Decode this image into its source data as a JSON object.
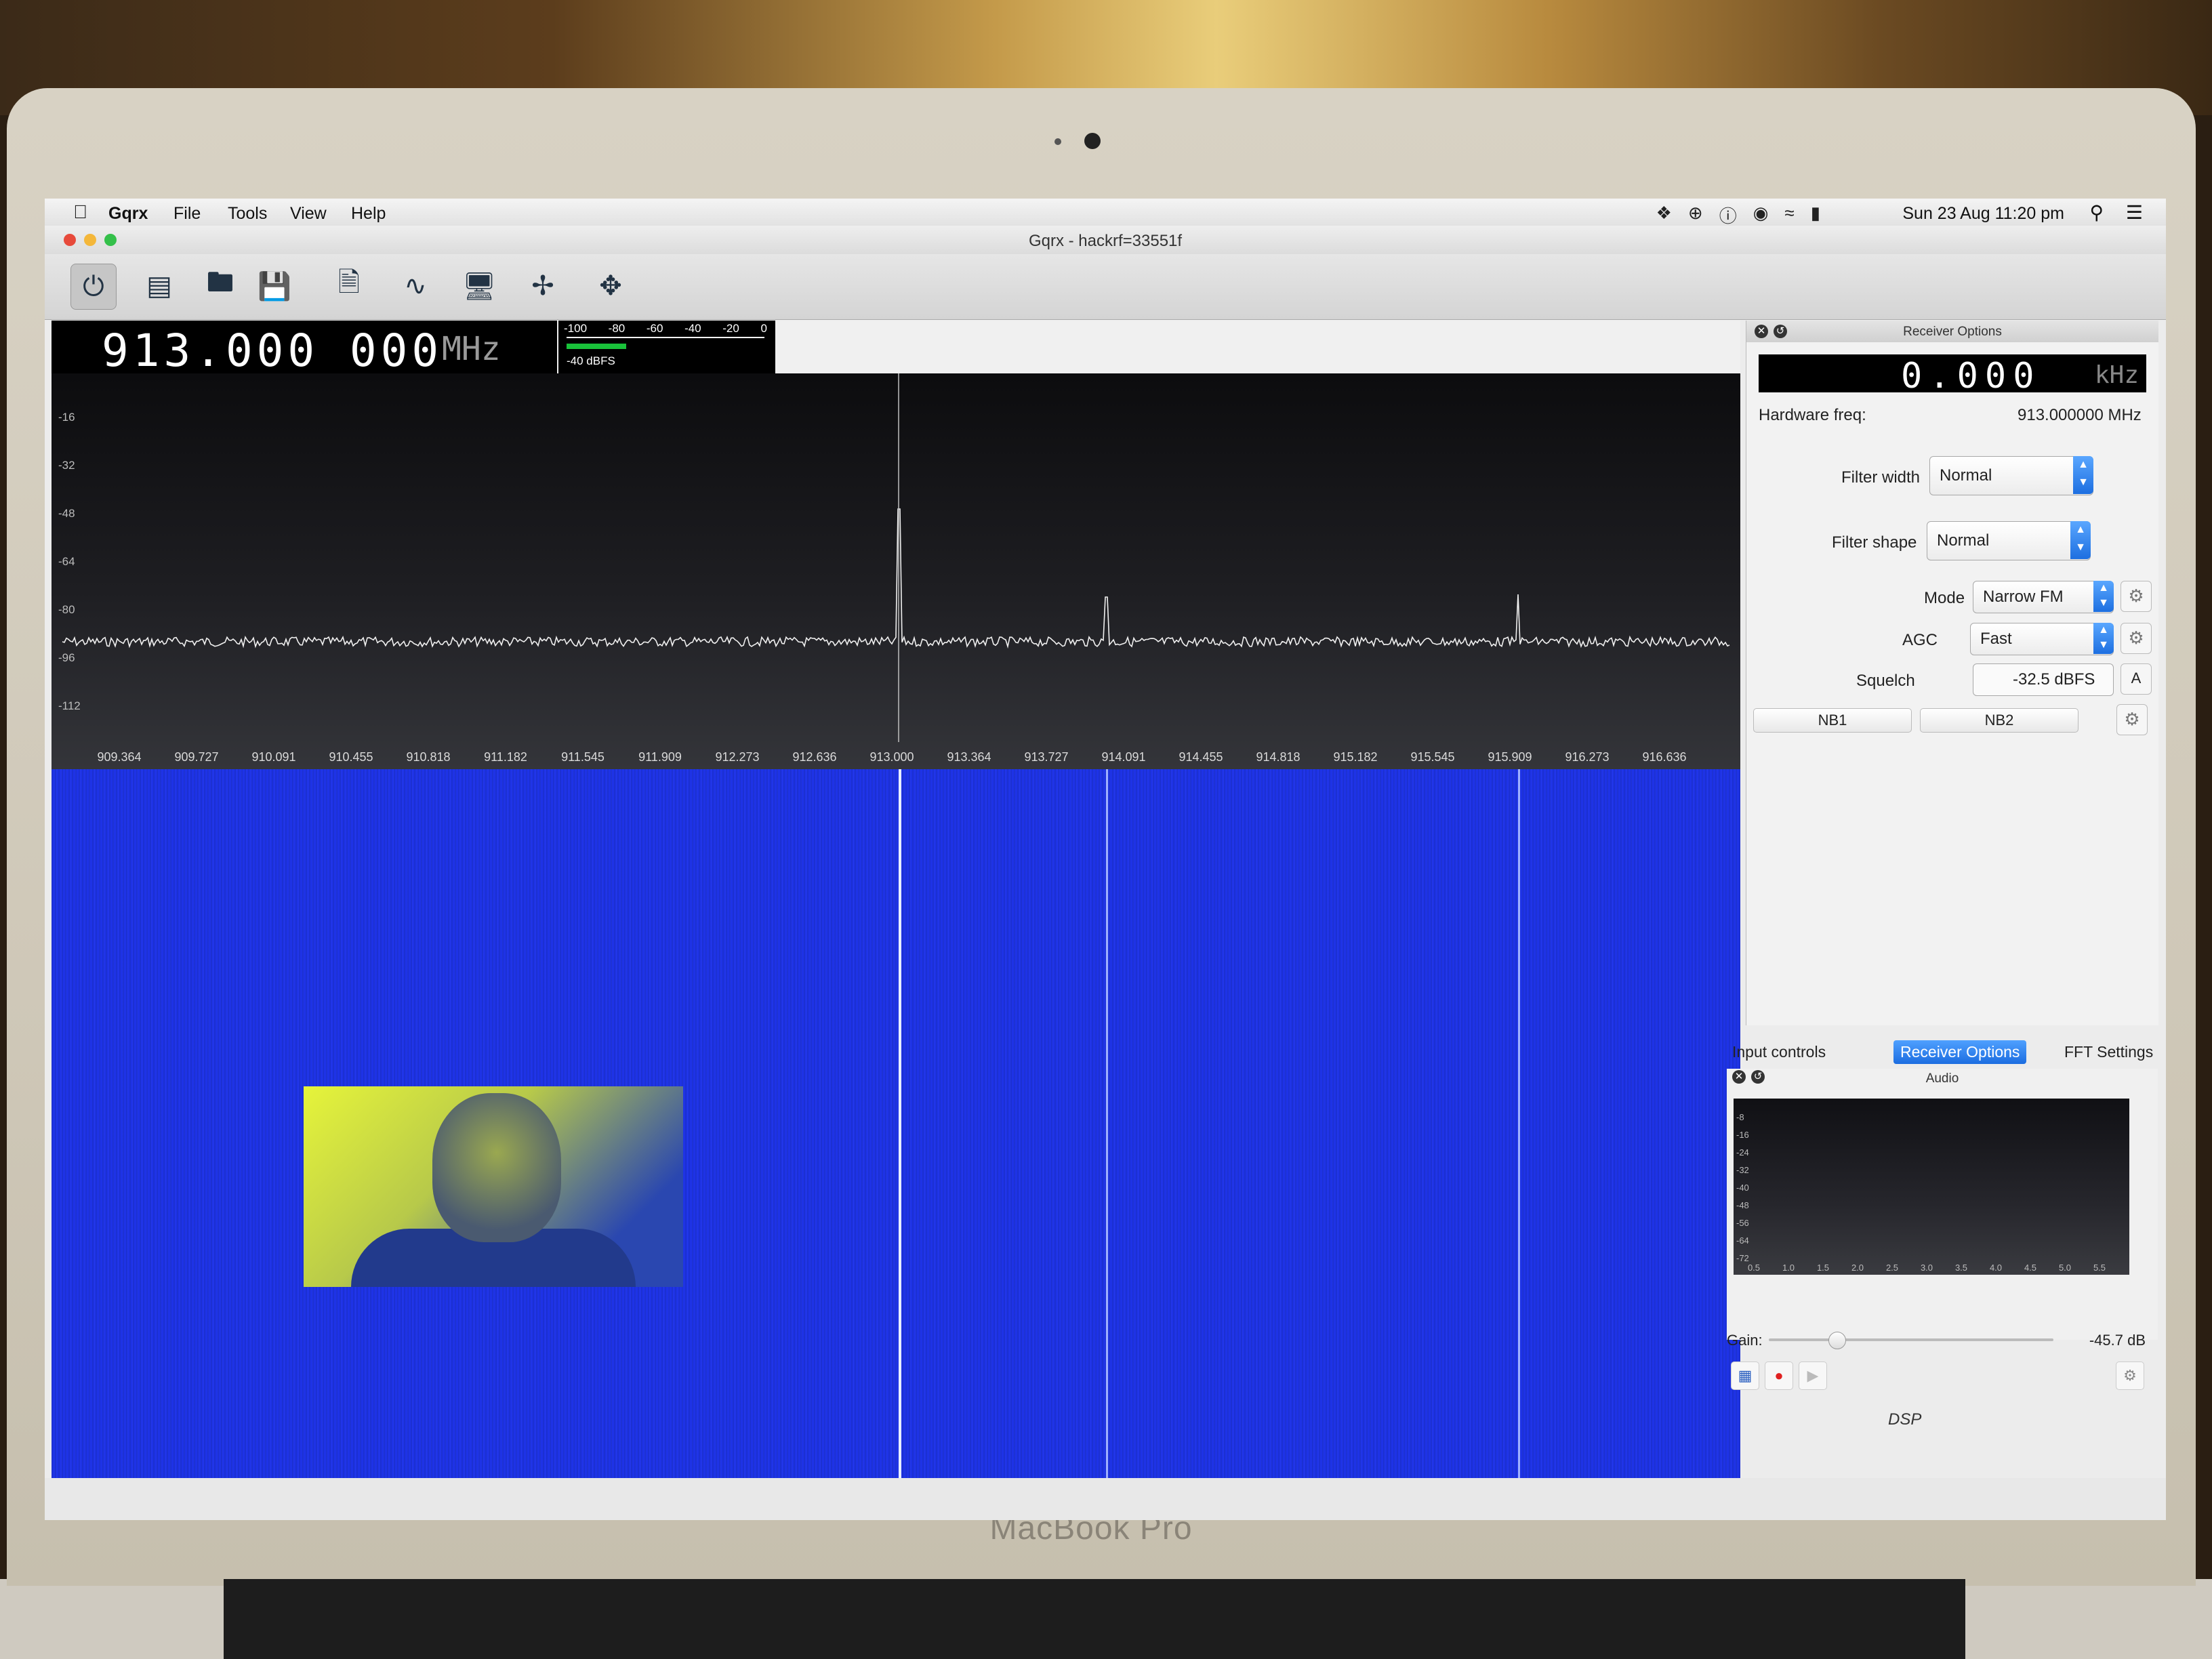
{
  "device": {
    "brand": "MacBook Pro"
  },
  "menubar": {
    "app_name": "Gqrx",
    "items": [
      "File",
      "Tools",
      "View",
      "Help"
    ],
    "clock": "Sun 23 Aug  11:20 pm"
  },
  "window": {
    "title": "Gqrx  - hackrf=33551f"
  },
  "frequency": {
    "value": "913.000 000",
    "unit": "MHz"
  },
  "smeter": {
    "scale": [
      "-100",
      "-80",
      "-60",
      "-40",
      "-20",
      "0"
    ],
    "level_label": "-40 dBFS",
    "level_fraction": 0.3
  },
  "spectrum": {
    "y_ticks": [
      "-16",
      "-32",
      "-48",
      "-64",
      "-80",
      "-96",
      "-112"
    ],
    "x_ticks": [
      "909.364",
      "909.727",
      "910.091",
      "910.455",
      "910.818",
      "911.182",
      "911.545",
      "911.909",
      "912.273",
      "912.636",
      "913.000",
      "913.364",
      "913.727",
      "914.091",
      "914.455",
      "914.818",
      "915.182",
      "915.545",
      "915.909",
      "916.273",
      "916.636"
    ]
  },
  "receiver_options": {
    "title": "Receiver Options",
    "offset_value": "0.000",
    "offset_unit": "kHz",
    "hardware_freq_label": "Hardware freq:",
    "hardware_freq_value": "913.000000 MHz",
    "filter_width_label": "Filter width",
    "filter_width_value": "Normal",
    "filter_shape_label": "Filter shape",
    "filter_shape_value": "Normal",
    "mode_label": "Mode",
    "mode_value": "Narrow FM",
    "agc_label": "AGC",
    "agc_value": "Fast",
    "squelch_label": "Squelch",
    "squelch_value": "-32.5 dBFS",
    "squelch_auto": "A",
    "nb1": "NB1",
    "nb2": "NB2"
  },
  "tabs": [
    "Input controls",
    "Receiver Options",
    "FFT Settings"
  ],
  "audio": {
    "title": "Audio",
    "y_ticks": [
      "-8",
      "-16",
      "-24",
      "-32",
      "-40",
      "-48",
      "-56",
      "-64",
      "-72"
    ],
    "x_ticks": [
      "0.5",
      "1.0",
      "1.5",
      "2.0",
      "2.5",
      "3.0",
      "3.5",
      "4.0",
      "4.5",
      "5.0",
      "5.5"
    ],
    "gain_label": "Gain:",
    "gain_value": "-45.7 dB",
    "dsp_label": "DSP"
  }
}
